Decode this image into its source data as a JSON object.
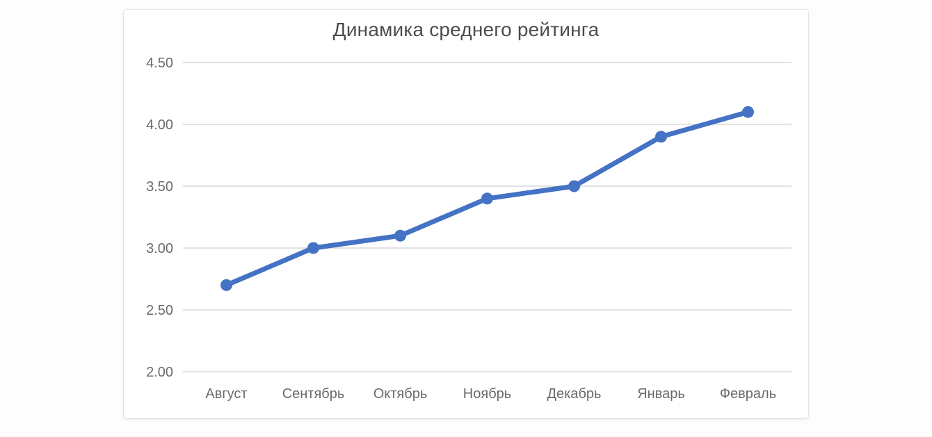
{
  "chart_data": {
    "type": "line",
    "title": "Динамика среднего рейтинга",
    "categories": [
      "Август",
      "Сентябрь",
      "Октябрь",
      "Ноябрь",
      "Декабрь",
      "Январь",
      "Февраль"
    ],
    "values": [
      2.7,
      3.0,
      3.1,
      3.4,
      3.5,
      3.9,
      4.1
    ],
    "xlabel": "",
    "ylabel": "",
    "ylim": [
      2.0,
      4.5
    ],
    "ytick_step": 0.5,
    "ytick_labels": [
      "2.00",
      "2.50",
      "3.00",
      "3.50",
      "4.00",
      "4.50"
    ],
    "grid": true,
    "legend": false,
    "colors": {
      "line": "#4472c4",
      "marker": "#4472c4",
      "gridline": "#d9d9d9",
      "title": "#4d4d4d",
      "tick_label": "#6a6a6a",
      "panel_background": "#ffffff"
    }
  }
}
